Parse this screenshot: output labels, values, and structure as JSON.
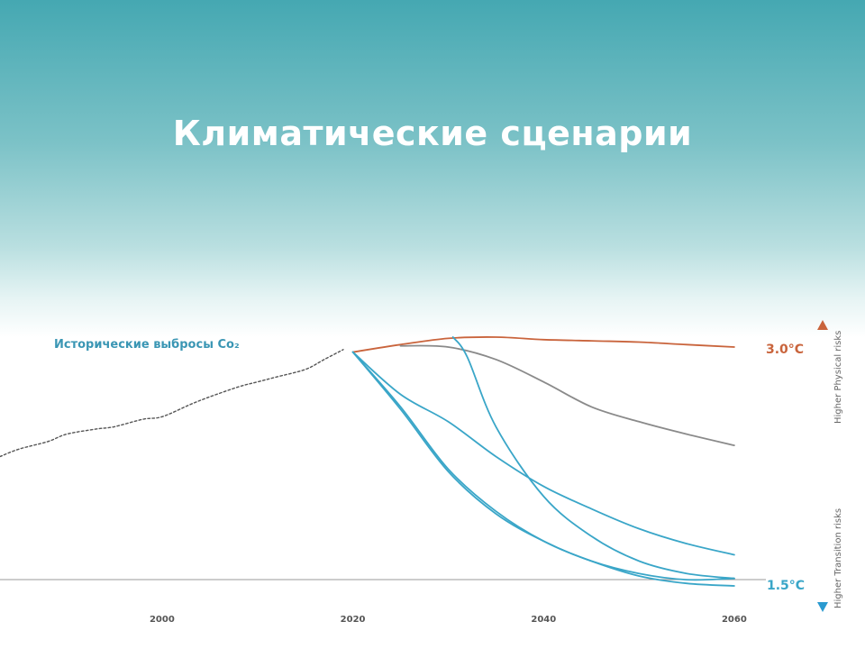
{
  "slide": {
    "title": "Климатические сценарии"
  },
  "chart_data": {
    "type": "line",
    "title": "Климатические сценарии",
    "xlabel": "",
    "ylabel": "",
    "xlim": [
      1983,
      2063
    ],
    "ylim": [
      0,
      100
    ],
    "x_ticks": [
      "2000",
      "2020",
      "2040",
      "2060"
    ],
    "annotations": {
      "historical": "Исторические выбросы Co₂",
      "high_temp": "3.0°C",
      "low_temp": "1.5°C",
      "physical_risk": "Higher Physical risks",
      "transition_risk": "Higher Transition risks"
    },
    "colors": {
      "historical": "#555555",
      "hot": "#c9643c",
      "middle": "#8a8a8a",
      "cool": "#3aa6c8",
      "baseline": "#999999"
    },
    "series": [
      {
        "style": "dotted",
        "color_key": "historical",
        "x": [
          1983,
          1985,
          1988,
          1990,
          1993,
          1995,
          1998,
          2000,
          2003,
          2005,
          2008,
          2010,
          2012,
          2015,
          2017,
          2019
        ],
        "y": [
          52,
          55,
          58,
          61,
          63,
          64,
          67,
          68,
          73,
          76,
          80,
          82,
          84,
          87,
          91,
          95
        ]
      },
      {
        "style": "solid",
        "color_key": "hot",
        "x": [
          2020,
          2025,
          2030,
          2035,
          2040,
          2045,
          2050,
          2055,
          2060
        ],
        "y": [
          94,
          97,
          99.5,
          100,
          99,
          98.5,
          98,
          97,
          96
        ]
      },
      {
        "style": "solid",
        "color_key": "middle",
        "x": [
          2025,
          2030,
          2035,
          2040,
          2045,
          2050,
          2055,
          2060
        ],
        "y": [
          96.5,
          96,
          91,
          82,
          72,
          66,
          61,
          56.5
        ]
      },
      {
        "style": "solid",
        "color_key": "cool",
        "x": [
          2030.5,
          2032,
          2035,
          2040,
          2045,
          2050,
          2055,
          2060
        ],
        "y": [
          100,
          92,
          64,
          36,
          20,
          10,
          5,
          3
        ]
      },
      {
        "style": "solid",
        "color_key": "cool",
        "x": [
          2020,
          2025,
          2030,
          2035,
          2040,
          2045,
          2050,
          2055,
          2060
        ],
        "y": [
          94,
          77,
          66,
          52,
          40,
          31,
          23,
          17,
          12.5
        ]
      },
      {
        "style": "solid",
        "color_key": "cool",
        "x": [
          2020,
          2025,
          2030,
          2035,
          2040,
          2045,
          2050,
          2055,
          2060
        ],
        "y": [
          94,
          71,
          46,
          29,
          18,
          10,
          5,
          2.5,
          3
        ]
      },
      {
        "style": "solid",
        "color_key": "cool",
        "x": [
          2020,
          2025,
          2030,
          2035,
          2040,
          2045,
          2050,
          2055,
          2060
        ],
        "y": [
          94,
          72,
          47,
          30,
          18,
          10,
          4,
          1,
          0
        ]
      }
    ]
  }
}
